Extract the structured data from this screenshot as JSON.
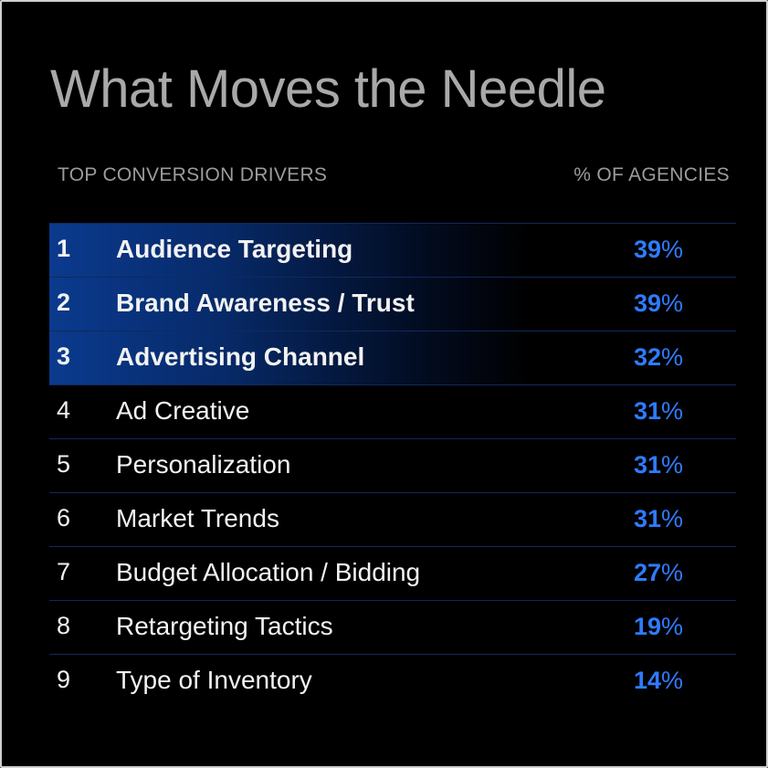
{
  "title": "What Moves the Needle",
  "accent_color": "#2f7bff",
  "chart_data": {
    "type": "table",
    "title": "What Moves the Needle",
    "columns": [
      "TOP CONVERSION DRIVERS",
      "% OF AGENCIES"
    ],
    "highlighted_ranks": [
      1,
      2,
      3
    ],
    "rows": [
      {
        "rank": "1",
        "label": "Audience Targeting",
        "value": "39",
        "unit": "%"
      },
      {
        "rank": "2",
        "label": "Brand Awareness / Trust",
        "value": "39",
        "unit": "%"
      },
      {
        "rank": "3",
        "label": "Advertising Channel",
        "value": "32",
        "unit": "%"
      },
      {
        "rank": "4",
        "label": "Ad Creative",
        "value": "31",
        "unit": "%"
      },
      {
        "rank": "5",
        "label": "Personalization",
        "value": "31",
        "unit": "%"
      },
      {
        "rank": "6",
        "label": "Market Trends",
        "value": "31",
        "unit": "%"
      },
      {
        "rank": "7",
        "label": "Budget Allocation / Bidding",
        "value": "27",
        "unit": "%"
      },
      {
        "rank": "8",
        "label": "Retargeting Tactics",
        "value": "19",
        "unit": "%"
      },
      {
        "rank": "9",
        "label": "Type of Inventory",
        "value": "14",
        "unit": "%"
      }
    ]
  }
}
